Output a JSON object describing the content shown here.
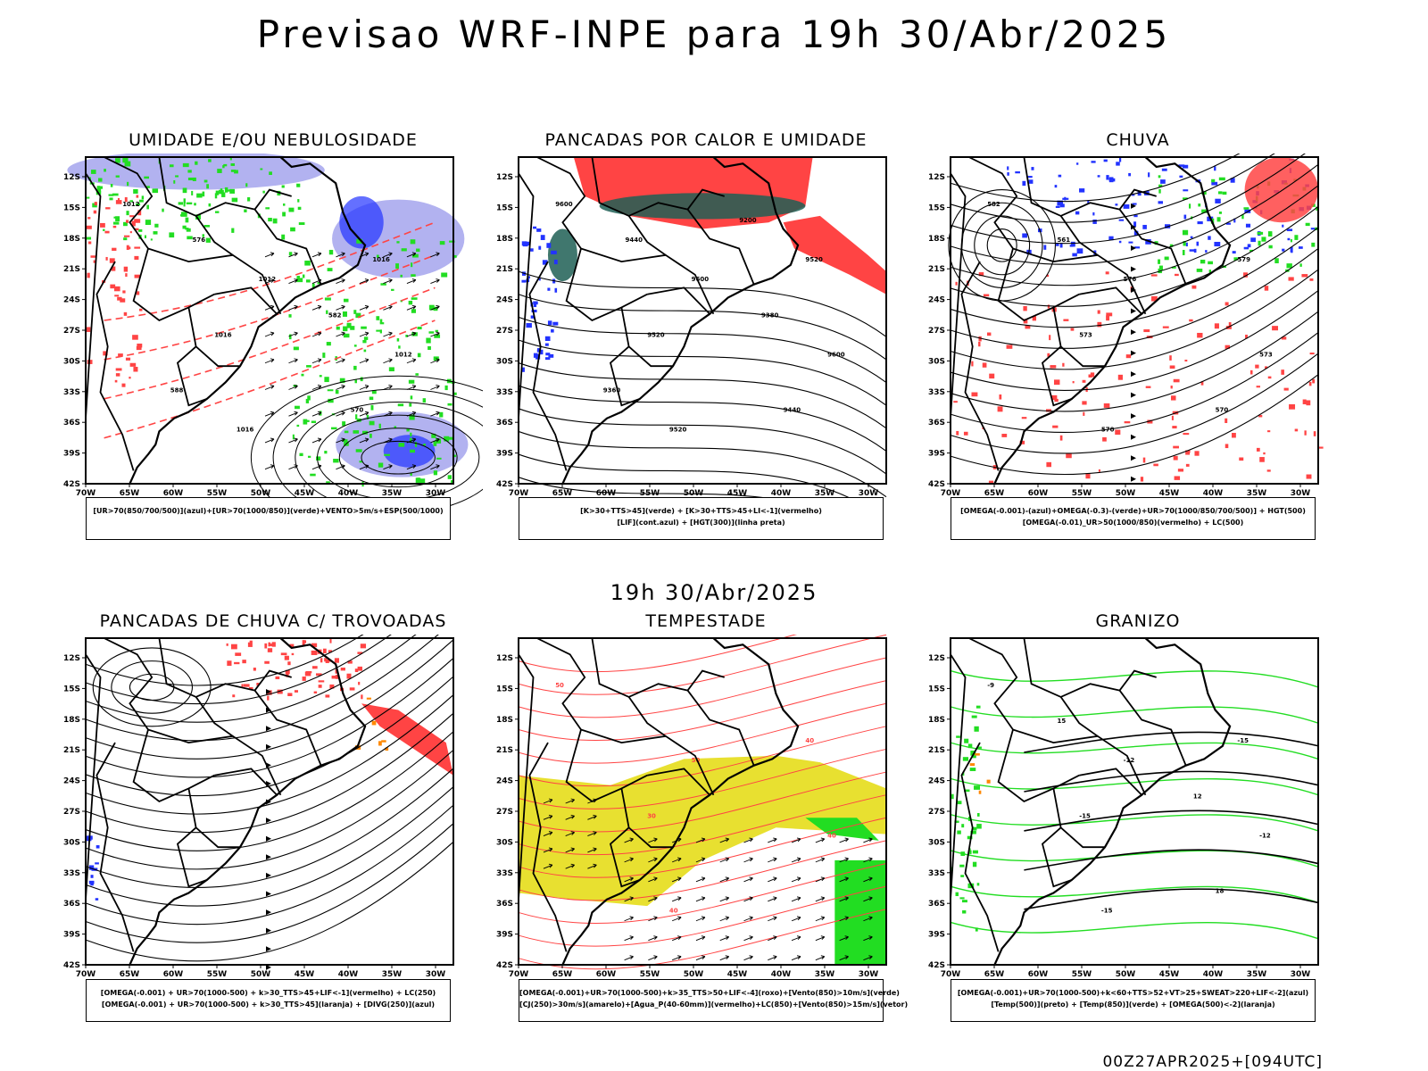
{
  "main_title": "Previsao WRF-INPE  para 19h 30/Abr/2025",
  "mid_title": "19h 30/Abr/2025",
  "footer": "00Z27APR2025+[094UTC]",
  "axes": {
    "lat_ticks": [
      "12S",
      "15S",
      "18S",
      "21S",
      "24S",
      "27S",
      "30S",
      "33S",
      "36S",
      "39S",
      "42S"
    ],
    "lon_ticks": [
      "70W",
      "65W",
      "60W",
      "55W",
      "50W",
      "45W",
      "40W",
      "35W",
      "30W"
    ]
  },
  "colors": {
    "green": "#22dd22",
    "red": "#ff4444",
    "blue": "#2233ff",
    "lilac": "#aaaaee",
    "yellow": "#e8e030",
    "darkgreen": "#1f5f55",
    "orange": "#ff8800"
  },
  "panels": [
    {
      "title": "UMIDADE E/OU NEBULOSIDADE",
      "legend": [
        "[UR>70(850/700/500)](azul)+[UR>70(1000/850)](verde)+VENTO>5m/s+ESP(500/1000)"
      ],
      "contour_labels": [
        "1012",
        "1012",
        "1012",
        "1016",
        "1016",
        "1016",
        "570",
        "576",
        "582",
        "588"
      ]
    },
    {
      "title": "PANCADAS POR CALOR E UMIDADE",
      "legend": [
        "[K>30+TTS>45](verde) + [K>30+TTS>45+LI<-1](vermelho)",
        "[LIF](cont.azul) + [HGT(300)](linha preta)"
      ],
      "contour_labels": [
        "9600",
        "9600",
        "9600",
        "9520",
        "9520",
        "9520",
        "9440",
        "9440",
        "9380",
        "9360",
        "9200"
      ]
    },
    {
      "title": "CHUVA",
      "legend": [
        "[OMEGA(-0.001)-(azul)+OMEGA(-0.3)-(verde)+UR>70(1000/850/700/500)] + HGT(500)",
        "[OMEGA(-0.01)_UR>50(1000/850)(vermelho) + LC(500)"
      ],
      "contour_labels": [
        "582",
        "576",
        "573",
        "570",
        "579",
        "573",
        "570",
        "561"
      ]
    },
    {
      "title": "PANCADAS DE CHUVA C/ TROVOADAS",
      "legend": [
        "[OMEGA(-0.001) + UR>70(1000-500) + k>30_TTS>45+LIF<-1](vermelho) + LC(250)",
        "[OMEGA(-0.001) + UR>70(1000-500) + k>30_TTS>45](laranja) + [DIVG(250)](azul)"
      ],
      "contour_labels": []
    },
    {
      "title": "TEMPESTADE",
      "legend": [
        "[OMEGA(-0.001)+UR>70(1000-500)+k>35_TTS>50+LIF<-4](roxo)+[Vento(850)>10m/s](verde)",
        "[CJ(250)>30m/s](amarelo)+[Agua_P(40-60mm)](vermelho)+LC(850)+[Vento(850)>15m/s](vetor)"
      ],
      "contour_labels": [
        "50",
        "50",
        "40",
        "40",
        "40",
        "30"
      ]
    },
    {
      "title": "GRANIZO",
      "legend": [
        "[OMEGA(-0.001)+UR>70(1000-500)+k<60+TTS>52+VT>25+SWEAT>220+LIF<-2](azul)",
        "[Temp(500)](preto) + [Temp(850)](verde) + [OMEGA(500)<-2](laranja)"
      ],
      "contour_labels": [
        "-9",
        "-12",
        "-12",
        "-15",
        "-15",
        "-15",
        "18",
        "15",
        "12"
      ]
    }
  ]
}
